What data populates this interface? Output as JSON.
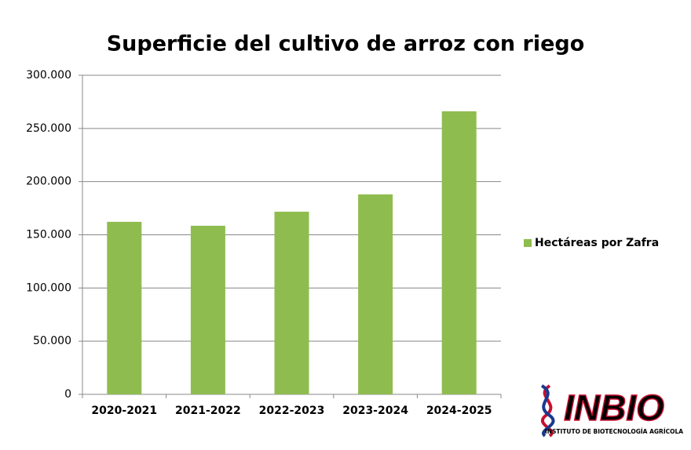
{
  "chart_data": {
    "type": "bar",
    "title": "Superficie del cultivo de arroz con riego",
    "categories": [
      "2020-2021",
      "2021-2022",
      "2022-2023",
      "2023-2024",
      "2024-2025"
    ],
    "series": [
      {
        "name": "Hectáreas por Zafra",
        "color": "#8fbc4f",
        "values": [
          162200,
          158500,
          171700,
          188000,
          266100
        ]
      }
    ],
    "ylim": [
      0,
      300000
    ],
    "yticks": [
      0,
      {
        "value": 50000,
        "label": "50.000"
      },
      {
        "value": 100000,
        "label": "100.000"
      },
      {
        "value": 150000,
        "label": "150.000"
      },
      {
        "value": 200000,
        "label": "200.000"
      },
      {
        "value": 250000,
        "label": "250.000"
      },
      {
        "value": 300000,
        "label": "300.000"
      }
    ],
    "grid": true,
    "legend": "right"
  },
  "logo": {
    "name": "INBIO",
    "subtitle": "INSTITUTO DE BIOTECNOLOGÍA AGRÍCOLA"
  }
}
